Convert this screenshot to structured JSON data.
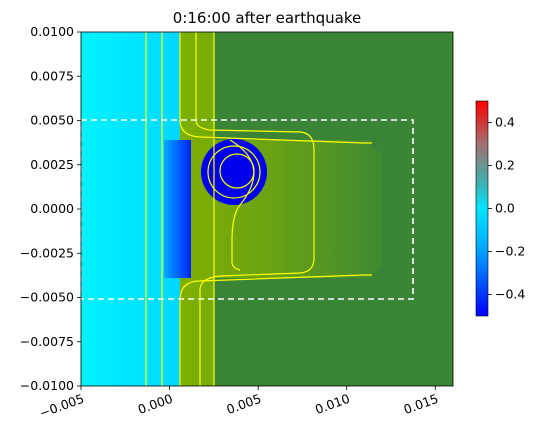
{
  "chart_data": {
    "type": "heatmap",
    "title": "0:16:00 after earthquake",
    "xlabel": "",
    "ylabel": "",
    "xlim": [
      -0.005,
      0.016
    ],
    "ylim": [
      -0.01,
      0.01
    ],
    "x_ticks": [
      -0.005,
      0.0,
      0.005,
      0.01,
      0.015
    ],
    "x_tick_labels": [
      "−0.005",
      "0.000",
      "0.005",
      "0.010",
      "0.015"
    ],
    "x_tick_label_rotation_deg": -20,
    "y_ticks": [
      0.01,
      0.0075,
      0.005,
      0.0025,
      0.0,
      -0.0025,
      -0.005,
      -0.0075,
      -0.01
    ],
    "y_tick_labels": [
      "0.0100",
      "0.0075",
      "0.0050",
      "0.0025",
      "0.0000",
      "−0.0025",
      "−0.0050",
      "−0.0075",
      "−0.0100"
    ],
    "colorbar": {
      "range": [
        -0.5,
        0.5
      ],
      "ticks": [
        0.4,
        0.2,
        0.0,
        -0.2,
        -0.4
      ],
      "tick_labels": [
        "0.4",
        "0.2",
        "0.0",
        "−0.2",
        "−0.4"
      ],
      "colors": [
        "#0000ff",
        "#00e5ff",
        "#8c8c8c",
        "#ff0000"
      ]
    },
    "regions": [
      {
        "name": "ocean",
        "value": -0.15,
        "color": "#00eeff",
        "x": [
          -0.005,
          0.0007
        ],
        "y": [
          -0.01,
          0.01
        ]
      },
      {
        "name": "coast-trough",
        "value": -0.45,
        "color": "#0033ff",
        "x": [
          0.0,
          0.0007
        ],
        "y": [
          -0.0037,
          0.0037
        ]
      },
      {
        "name": "shelf-land",
        "value": 0.25,
        "color": "#8cb400",
        "x": [
          0.0007,
          0.0113
        ],
        "y": [
          -0.0037,
          0.0037
        ]
      },
      {
        "name": "land",
        "value": 0.3,
        "color": "#3a8535",
        "x": [
          0.0007,
          0.016
        ],
        "y": [
          -0.01,
          0.01
        ]
      },
      {
        "name": "island-depression",
        "value": -0.5,
        "color": "#0000ee",
        "center": [
          0.0038,
          0.0021
        ],
        "radius": 0.0018
      }
    ],
    "contour_levels_color": "#ffff00",
    "dashed_box": {
      "x": [
        -0.005,
        0.0138
      ],
      "y": [
        -0.0051,
        0.0051
      ],
      "color": "#ffffff"
    },
    "grid": false,
    "legend": "colorbar-right"
  }
}
